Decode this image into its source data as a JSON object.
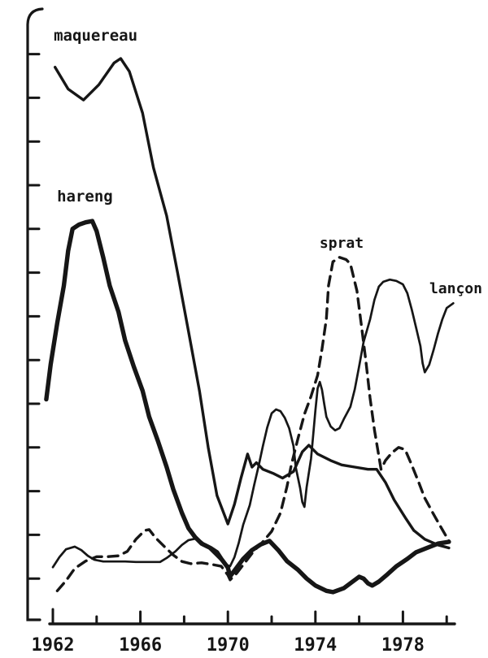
{
  "figure": {
    "ink": "#161616",
    "background": "#ffffff"
  },
  "chart_data": {
    "type": "line",
    "title": "",
    "xlabel": "",
    "ylabel": "",
    "description": "Scanned black-and-white line chart of four fish stock abundance curves (French species labels) versus year; y-axis has unlabeled ticks only",
    "grid": false,
    "legend_position": "inline curve labels",
    "x_axis": {
      "start_year": 1962,
      "end_year": 1980,
      "tick_step": 2,
      "tick_years": [
        1962,
        1964,
        1966,
        1968,
        1970,
        1972,
        1974,
        1976,
        1978,
        1980
      ],
      "labeled_tick_years": [
        1962,
        1966,
        1970,
        1974,
        1978
      ],
      "tick_labels": [
        "1962",
        "1966",
        "1970",
        "1974",
        "1978"
      ]
    },
    "y_axis": {
      "tick_count": 13,
      "tick_labels_visible": false,
      "unit": "relative abundance index (unlabeled ticks)",
      "range": [
        0,
        14.2
      ]
    },
    "xlim": [
      1961.5,
      1982
    ],
    "ylim": [
      0,
      14.2
    ],
    "series": [
      {
        "name": "maquereau",
        "label": "maquereau",
        "line_style": "solid",
        "stroke_width": 3.4,
        "label_font_px": 19,
        "label_anchor": {
          "year": 1962.04,
          "value": 13.31
        },
        "points": [
          [
            1962.1,
            12.7
          ],
          [
            1962.7,
            12.2
          ],
          [
            1963.4,
            11.95
          ],
          [
            1964.1,
            12.3
          ],
          [
            1964.8,
            12.8
          ],
          [
            1965.1,
            12.9
          ],
          [
            1965.5,
            12.6
          ],
          [
            1966.1,
            11.65
          ],
          [
            1966.6,
            10.4
          ],
          [
            1967.2,
            9.3
          ],
          [
            1967.7,
            8.0
          ],
          [
            1968.2,
            6.65
          ],
          [
            1968.7,
            5.3
          ],
          [
            1969.1,
            4.0
          ],
          [
            1969.5,
            2.9
          ],
          [
            1970.0,
            2.25
          ],
          [
            1970.3,
            2.7
          ],
          [
            1970.6,
            3.3
          ],
          [
            1970.9,
            3.85
          ],
          [
            1971.1,
            3.55
          ],
          [
            1971.3,
            3.65
          ],
          [
            1971.6,
            3.5
          ],
          [
            1972.1,
            3.4
          ],
          [
            1972.5,
            3.3
          ],
          [
            1973.0,
            3.45
          ],
          [
            1973.4,
            3.9
          ],
          [
            1973.7,
            4.05
          ],
          [
            1974.1,
            3.85
          ],
          [
            1974.7,
            3.7
          ],
          [
            1975.2,
            3.6
          ],
          [
            1975.8,
            3.55
          ],
          [
            1976.4,
            3.5
          ],
          [
            1976.8,
            3.5
          ],
          [
            1977.2,
            3.2
          ],
          [
            1977.6,
            2.8
          ],
          [
            1978.1,
            2.4
          ],
          [
            1978.5,
            2.1
          ],
          [
            1979.0,
            1.9
          ],
          [
            1979.6,
            1.77
          ],
          [
            1980.1,
            1.7
          ]
        ]
      },
      {
        "name": "hareng",
        "label": "hareng",
        "line_style": "solid-thick",
        "stroke_width": 5.4,
        "label_font_px": 19,
        "label_anchor": {
          "year": 1962.19,
          "value": 9.63
        },
        "points": [
          [
            1961.7,
            5.1
          ],
          [
            1961.9,
            5.9
          ],
          [
            1962.2,
            6.85
          ],
          [
            1962.5,
            7.7
          ],
          [
            1962.7,
            8.5
          ],
          [
            1962.9,
            9.0
          ],
          [
            1963.2,
            9.1
          ],
          [
            1963.5,
            9.15
          ],
          [
            1963.8,
            9.18
          ],
          [
            1964.0,
            8.95
          ],
          [
            1964.3,
            8.35
          ],
          [
            1964.6,
            7.7
          ],
          [
            1965.0,
            7.1
          ],
          [
            1965.3,
            6.45
          ],
          [
            1965.7,
            5.85
          ],
          [
            1966.1,
            5.3
          ],
          [
            1966.4,
            4.7
          ],
          [
            1966.8,
            4.15
          ],
          [
            1967.2,
            3.55
          ],
          [
            1967.5,
            3.05
          ],
          [
            1967.9,
            2.5
          ],
          [
            1968.2,
            2.15
          ],
          [
            1968.5,
            1.95
          ],
          [
            1968.8,
            1.8
          ],
          [
            1969.2,
            1.7
          ],
          [
            1969.5,
            1.6
          ],
          [
            1969.7,
            1.45
          ],
          [
            1970.0,
            1.25
          ],
          [
            1970.1,
            1.05
          ],
          [
            1970.4,
            1.25
          ],
          [
            1970.7,
            1.45
          ],
          [
            1971.1,
            1.65
          ],
          [
            1971.5,
            1.78
          ],
          [
            1971.9,
            1.86
          ],
          [
            1972.3,
            1.65
          ],
          [
            1972.7,
            1.4
          ],
          [
            1973.2,
            1.2
          ],
          [
            1973.6,
            1.0
          ],
          [
            1974.0,
            0.84
          ],
          [
            1974.5,
            0.72
          ],
          [
            1974.8,
            0.69
          ],
          [
            1975.3,
            0.78
          ],
          [
            1975.7,
            0.93
          ],
          [
            1976.0,
            1.04
          ],
          [
            1976.2,
            1.0
          ],
          [
            1976.4,
            0.89
          ],
          [
            1976.6,
            0.84
          ],
          [
            1976.9,
            0.93
          ],
          [
            1977.3,
            1.1
          ],
          [
            1977.7,
            1.28
          ],
          [
            1978.2,
            1.45
          ],
          [
            1978.6,
            1.6
          ],
          [
            1979.1,
            1.7
          ],
          [
            1979.6,
            1.8
          ],
          [
            1980.1,
            1.84
          ]
        ]
      },
      {
        "name": "sprat",
        "label": "sprat",
        "line_style": "dashed",
        "stroke_width": 3.4,
        "label_font_px": 18,
        "label_anchor": {
          "year": 1974.19,
          "value": 8.57
        },
        "points": [
          [
            1962.2,
            0.72
          ],
          [
            1962.6,
            0.95
          ],
          [
            1963.0,
            1.23
          ],
          [
            1963.5,
            1.4
          ],
          [
            1964.0,
            1.5
          ],
          [
            1964.5,
            1.5
          ],
          [
            1965.0,
            1.52
          ],
          [
            1965.4,
            1.62
          ],
          [
            1965.8,
            1.9
          ],
          [
            1966.2,
            2.1
          ],
          [
            1966.4,
            2.12
          ],
          [
            1966.7,
            1.93
          ],
          [
            1967.1,
            1.73
          ],
          [
            1967.5,
            1.54
          ],
          [
            1967.9,
            1.39
          ],
          [
            1968.3,
            1.34
          ],
          [
            1968.8,
            1.36
          ],
          [
            1969.3,
            1.32
          ],
          [
            1969.7,
            1.28
          ],
          [
            1970.0,
            1.08
          ],
          [
            1970.1,
            0.97
          ],
          [
            1970.4,
            1.12
          ],
          [
            1970.8,
            1.38
          ],
          [
            1971.2,
            1.64
          ],
          [
            1971.6,
            1.84
          ],
          [
            1972.0,
            2.08
          ],
          [
            1972.4,
            2.5
          ],
          [
            1972.7,
            3.1
          ],
          [
            1972.9,
            3.6
          ],
          [
            1973.2,
            4.2
          ],
          [
            1973.5,
            4.76
          ],
          [
            1973.8,
            5.17
          ],
          [
            1974.1,
            5.65
          ],
          [
            1974.3,
            6.25
          ],
          [
            1974.5,
            6.95
          ],
          [
            1974.6,
            7.7
          ],
          [
            1974.8,
            8.25
          ],
          [
            1975.1,
            8.35
          ],
          [
            1975.4,
            8.3
          ],
          [
            1975.6,
            8.2
          ],
          [
            1975.9,
            7.58
          ],
          [
            1976.1,
            6.8
          ],
          [
            1976.3,
            6.0
          ],
          [
            1976.5,
            5.13
          ],
          [
            1976.7,
            4.4
          ],
          [
            1976.9,
            3.8
          ],
          [
            1977.0,
            3.5
          ],
          [
            1977.2,
            3.7
          ],
          [
            1977.5,
            3.88
          ],
          [
            1977.8,
            4.0
          ],
          [
            1978.1,
            3.95
          ],
          [
            1978.4,
            3.6
          ],
          [
            1978.7,
            3.23
          ],
          [
            1979.0,
            2.84
          ],
          [
            1979.4,
            2.47
          ],
          [
            1979.8,
            2.12
          ],
          [
            1980.1,
            1.86
          ]
        ]
      },
      {
        "name": "lancon",
        "label": "lançon",
        "line_style": "solid-thin",
        "stroke_width": 2.7,
        "label_font_px": 18,
        "label_anchor": {
          "year": 1979.21,
          "value": 7.53
        },
        "points": [
          [
            1962.0,
            1.26
          ],
          [
            1962.3,
            1.49
          ],
          [
            1962.6,
            1.67
          ],
          [
            1963.0,
            1.73
          ],
          [
            1963.3,
            1.65
          ],
          [
            1963.6,
            1.52
          ],
          [
            1963.9,
            1.43
          ],
          [
            1964.3,
            1.39
          ],
          [
            1964.8,
            1.39
          ],
          [
            1965.3,
            1.39
          ],
          [
            1965.8,
            1.38
          ],
          [
            1966.4,
            1.38
          ],
          [
            1966.9,
            1.38
          ],
          [
            1967.2,
            1.47
          ],
          [
            1967.6,
            1.62
          ],
          [
            1967.9,
            1.77
          ],
          [
            1968.2,
            1.88
          ],
          [
            1968.5,
            1.91
          ],
          [
            1968.8,
            1.84
          ],
          [
            1969.1,
            1.71
          ],
          [
            1969.4,
            1.56
          ],
          [
            1969.7,
            1.41
          ],
          [
            1969.9,
            1.32
          ],
          [
            1970.1,
            1.28
          ],
          [
            1970.3,
            1.49
          ],
          [
            1970.5,
            1.82
          ],
          [
            1970.7,
            2.23
          ],
          [
            1971.0,
            2.68
          ],
          [
            1971.2,
            3.14
          ],
          [
            1971.4,
            3.57
          ],
          [
            1971.6,
            4.03
          ],
          [
            1971.8,
            4.46
          ],
          [
            1972.0,
            4.78
          ],
          [
            1972.2,
            4.87
          ],
          [
            1972.4,
            4.83
          ],
          [
            1972.6,
            4.68
          ],
          [
            1972.8,
            4.44
          ],
          [
            1973.0,
            4.03
          ],
          [
            1973.1,
            3.55
          ],
          [
            1973.3,
            3.07
          ],
          [
            1973.4,
            2.75
          ],
          [
            1973.5,
            2.64
          ],
          [
            1973.6,
            3.09
          ],
          [
            1973.8,
            3.74
          ],
          [
            1973.9,
            4.29
          ],
          [
            1974.0,
            4.85
          ],
          [
            1974.1,
            5.35
          ],
          [
            1974.2,
            5.5
          ],
          [
            1974.3,
            5.32
          ],
          [
            1974.4,
            5.0
          ],
          [
            1974.5,
            4.7
          ],
          [
            1974.7,
            4.48
          ],
          [
            1974.9,
            4.39
          ],
          [
            1975.1,
            4.44
          ],
          [
            1975.3,
            4.65
          ],
          [
            1975.6,
            4.93
          ],
          [
            1975.8,
            5.33
          ],
          [
            1976.0,
            5.86
          ],
          [
            1976.2,
            6.41
          ],
          [
            1976.5,
            6.93
          ],
          [
            1976.7,
            7.38
          ],
          [
            1976.9,
            7.68
          ],
          [
            1977.1,
            7.79
          ],
          [
            1977.4,
            7.84
          ],
          [
            1977.7,
            7.81
          ],
          [
            1978.0,
            7.73
          ],
          [
            1978.2,
            7.53
          ],
          [
            1978.4,
            7.16
          ],
          [
            1978.6,
            6.75
          ],
          [
            1978.8,
            6.32
          ],
          [
            1978.9,
            5.93
          ],
          [
            1979.0,
            5.72
          ],
          [
            1979.2,
            5.89
          ],
          [
            1979.4,
            6.23
          ],
          [
            1979.6,
            6.6
          ],
          [
            1979.8,
            6.93
          ],
          [
            1980.0,
            7.19
          ],
          [
            1980.3,
            7.3
          ]
        ]
      }
    ]
  }
}
